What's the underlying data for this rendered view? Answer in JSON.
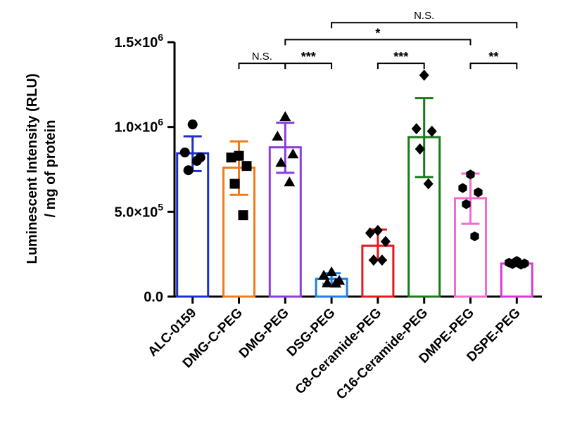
{
  "chart_data": {
    "type": "bar",
    "ylabel_line1": "Luminescent Intensity (RLU)",
    "ylabel_line2": "/ mg of protein",
    "ylim": [
      0,
      1500000
    ],
    "yticks": [
      {
        "value": 0,
        "label": "0.0"
      },
      {
        "value": 500000,
        "mantissa": "5.0×10",
        "exp": "5"
      },
      {
        "value": 1000000,
        "mantissa": "1.0×10",
        "exp": "6"
      },
      {
        "value": 1500000,
        "mantissa": "1.5×10",
        "exp": "6"
      }
    ],
    "categories": [
      "ALC-0159",
      "DMG-C-PEG",
      "DMG-PEG",
      "DSG-PEG",
      "C8-Ceramide-PEG",
      "C16-Ceramide-PEG",
      "DMPE-PEG",
      "DSPE-PEG"
    ],
    "colors": [
      "#1b2fd1",
      "#f07b1a",
      "#8a3de0",
      "#1e7fe6",
      "#e21a1a",
      "#1a7a1a",
      "#ee6cd3",
      "#d63ad6"
    ],
    "markers": [
      "circle",
      "square",
      "triangle",
      "triangle",
      "diamond",
      "diamond",
      "hexagon",
      "hexagon"
    ],
    "values": [
      845000,
      760000,
      880000,
      105000,
      300000,
      940000,
      580000,
      195000
    ],
    "err_low": [
      740000,
      600000,
      730000,
      75000,
      215000,
      705000,
      430000,
      180000
    ],
    "err_high": [
      945000,
      915000,
      1025000,
      138000,
      395000,
      1170000,
      725000,
      210000
    ],
    "points": [
      [
        1015000,
        850000,
        820000,
        745000,
        800000
      ],
      [
        830000,
        820000,
        770000,
        665000,
        480000
      ],
      [
        1060000,
        945000,
        840000,
        790000,
        675000
      ],
      [
        145000,
        125000,
        95000,
        80000,
        78000
      ],
      [
        390000,
        375000,
        325000,
        215000,
        215000
      ],
      [
        1305000,
        990000,
        975000,
        870000,
        665000
      ],
      [
        720000,
        640000,
        615000,
        545000,
        355000
      ],
      [
        210000,
        200000,
        195000,
        192000,
        188000
      ]
    ],
    "comparisons": [
      {
        "from": 1,
        "to": 2,
        "label": "N.S.",
        "y": 1375000
      },
      {
        "from": 2,
        "to": 3,
        "label": "***",
        "y": 1375000
      },
      {
        "from": 4,
        "to": 5,
        "label": "***",
        "y": 1375000
      },
      {
        "from": 6,
        "to": 7,
        "label": "**",
        "y": 1375000
      },
      {
        "from": 2,
        "to": 6,
        "label": "*",
        "y": 1515000
      },
      {
        "from": 3,
        "to": 7,
        "label": "N.S.",
        "y": 1615000
      }
    ]
  }
}
